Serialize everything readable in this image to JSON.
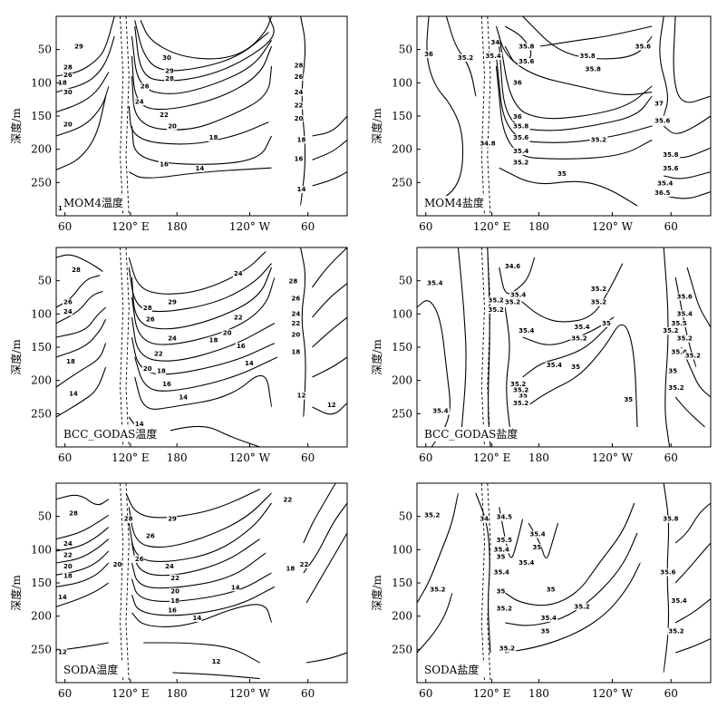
{
  "chart_data": [
    {
      "type": "contour",
      "title": "MOM4温度",
      "ylabel": "深度/m",
      "yticks": [
        "50",
        "100",
        "150",
        "200",
        "250"
      ],
      "xticks": [
        "60",
        "120° E",
        "180",
        "120° W",
        "60"
      ],
      "ylim": [
        300,
        0
      ],
      "contour_labels": [
        "29",
        "28",
        "26",
        "30",
        "20",
        "18",
        "30",
        "29",
        "28",
        "26",
        "24",
        "22",
        "20",
        "18",
        "16",
        "14",
        "28",
        "26",
        "24",
        "22",
        "20",
        "18",
        "16",
        "14",
        "14"
      ]
    },
    {
      "type": "contour",
      "title": "MOM4盐度",
      "ylabel": "深度/m",
      "yticks": [
        "50",
        "100",
        "150",
        "200",
        "250"
      ],
      "xticks": [
        "60",
        "120° E",
        "180",
        "120° W",
        "60"
      ],
      "ylim": [
        300,
        0
      ],
      "contour_labels": [
        "36",
        "35.2",
        "35.8",
        "34",
        "35.4",
        "35.6",
        "35.8",
        "36",
        "35.8",
        "35.6",
        "36",
        "35.8",
        "35.6",
        "35.4",
        "35.2",
        "35",
        "34.8",
        "35.2",
        "37",
        "35.6",
        "35.8",
        "35.6",
        "35.4",
        "36.5"
      ]
    },
    {
      "type": "contour",
      "title": "BCC_GODAS温度",
      "ylabel": "深度/m",
      "yticks": [
        "50",
        "100",
        "150",
        "200",
        "250"
      ],
      "xticks": [
        "60",
        "120° E",
        "180",
        "120° W",
        "60"
      ],
      "ylim": [
        300,
        0
      ],
      "contour_labels": [
        "28",
        "26",
        "24",
        "18",
        "14",
        "29",
        "28",
        "26",
        "24",
        "22",
        "20",
        "18",
        "16",
        "14",
        "24",
        "22",
        "20",
        "18",
        "16",
        "14",
        "14",
        "28",
        "26",
        "24",
        "22",
        "20",
        "18",
        "12",
        "12"
      ]
    },
    {
      "type": "contour",
      "title": "BCC_GODAS盐度",
      "ylabel": "深度/m",
      "yticks": [
        "50",
        "100",
        "150",
        "200",
        "250"
      ],
      "xticks": [
        "60",
        "120° E",
        "180",
        "120° W",
        "60"
      ],
      "ylim": [
        300,
        0
      ],
      "contour_labels": [
        "35.4",
        "35.2",
        "34.6",
        "35.2",
        "35.2",
        "35.4",
        "35.2",
        "35.4",
        "35.2",
        "35.4",
        "35.2",
        "35",
        "35",
        "35.4",
        "35",
        "35",
        "35.2",
        "35.4",
        "35.2",
        "35.2",
        "35.6",
        "35.5",
        "35.2",
        "35.4",
        "35.2",
        "35.4",
        "35",
        "35.2",
        "35.2"
      ]
    },
    {
      "type": "contour",
      "title": "SODA温度",
      "ylabel": "深度/m",
      "yticks": [
        "50",
        "100",
        "150",
        "200",
        "250"
      ],
      "xticks": [
        "60",
        "120° E",
        "180",
        "120° W",
        "60"
      ],
      "ylim": [
        300,
        0
      ],
      "contour_labels": [
        "28",
        "24",
        "22",
        "20",
        "18",
        "14",
        "12",
        "28",
        "29",
        "26",
        "26",
        "24",
        "22",
        "20",
        "18",
        "16",
        "14",
        "14",
        "22",
        "20",
        "12",
        "18",
        "22"
      ]
    },
    {
      "type": "contour",
      "title": "SODA盐度",
      "ylabel": "深度/m",
      "yticks": [
        "50",
        "100",
        "150",
        "200",
        "250"
      ],
      "xticks": [
        "60",
        "120° E",
        "180",
        "120° W",
        "60"
      ],
      "ylim": [
        300,
        0
      ],
      "contour_labels": [
        "35.2",
        "35.2",
        "34",
        "34.5",
        "35.5",
        "35.4",
        "35",
        "35.4",
        "35",
        "35.4",
        "35.4",
        "35",
        "35.2",
        "35.4",
        "35",
        "35",
        "35.2",
        "35.2",
        "35.8",
        "35.6",
        "35.4",
        "35.2"
      ]
    }
  ]
}
